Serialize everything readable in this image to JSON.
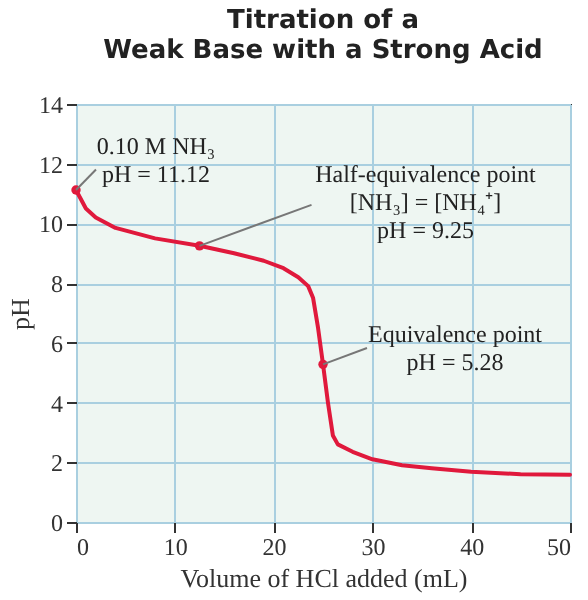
{
  "chart_data": {
    "type": "line",
    "title": "Titration of a\nWeak Base with a Strong Acid",
    "xlabel": "Volume of HCl added (mL)",
    "ylabel": "pH",
    "xlim": [
      0,
      50
    ],
    "xticks": [
      0,
      10,
      20,
      30,
      40,
      50
    ],
    "ylim": [
      0,
      14
    ],
    "yticks": [
      0,
      2,
      4,
      6,
      8,
      10,
      12,
      14
    ],
    "grid": true,
    "series": [
      {
        "type": "line",
        "color": "#e0193c",
        "x": [
          0,
          1,
          2,
          4,
          8,
          12.5,
          16,
          19,
          21,
          22.5,
          23.5,
          24,
          24.5,
          25,
          25.5,
          26,
          26.5,
          28,
          30,
          33,
          36,
          40,
          45,
          50
        ],
        "values": [
          11.12,
          10.5,
          10.2,
          9.85,
          9.5,
          9.25,
          9.0,
          8.75,
          8.5,
          8.2,
          7.9,
          7.5,
          6.5,
          5.28,
          4.0,
          2.9,
          2.6,
          2.35,
          2.1,
          1.9,
          1.8,
          1.68,
          1.6,
          1.58
        ]
      },
      {
        "type": "scatter",
        "color": "#e0193c",
        "marker": "circle",
        "x": [
          0,
          12.5,
          25
        ],
        "values": [
          11.12,
          9.25,
          5.28
        ]
      }
    ],
    "annotations": [
      {
        "text": "0.10 M NH₃\npH = 11.12",
        "x": 0,
        "y": 11.12
      },
      {
        "text": "Half-equivalence point\n[NH₃] = [NH₄⁺]\npH = 9.25",
        "x": 12.5,
        "y": 9.25
      },
      {
        "text": "Equivalence point\npH = 5.28",
        "x": 25,
        "y": 5.28
      }
    ]
  }
}
